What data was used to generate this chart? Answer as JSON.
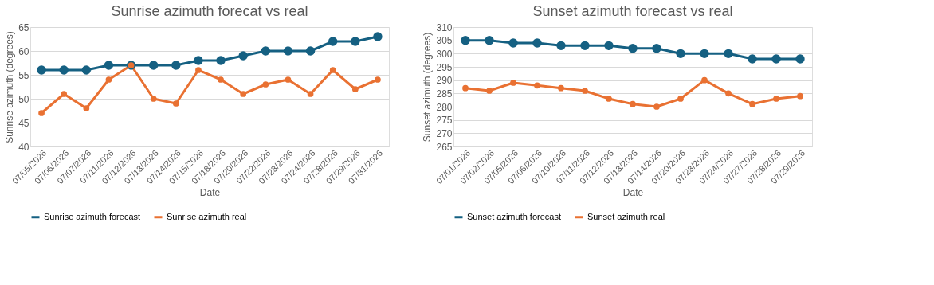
{
  "chart_data": [
    {
      "type": "line",
      "title": "Sunrise azimuth forecat vs real",
      "xlabel": "Date",
      "ylabel": "Sunrise azimuth (degrees)",
      "categories": [
        "07/05/2026",
        "07/06/2026",
        "07/07/2026",
        "07/11/2026",
        "07/12/2026",
        "07/13/2026",
        "07/14/2026",
        "07/15/2026",
        "07/18/2026",
        "07/20/2026",
        "07/22/2026",
        "07/23/2026",
        "07/24/2026",
        "07/28/2026",
        "07/29/2026",
        "07/31/2026"
      ],
      "series": [
        {
          "name": "Sunrise azimuth forecast",
          "color": "#156082",
          "values": [
            56,
            56,
            56,
            57,
            57,
            57,
            57,
            58,
            58,
            59,
            60,
            60,
            60,
            62,
            62,
            63
          ]
        },
        {
          "name": "Sunrise azimuth real",
          "color": "#e97132",
          "values": [
            47,
            51,
            48,
            54,
            57,
            50,
            49,
            56,
            54,
            51,
            53,
            54,
            51,
            56,
            52,
            54
          ]
        }
      ],
      "ylim": [
        40,
        65
      ],
      "yticks": [
        40,
        45,
        50,
        55,
        60,
        65
      ],
      "grid": "y",
      "legend": "bottom",
      "marker": "circle",
      "line_style": "solid"
    },
    {
      "type": "line",
      "title": "Sunset azimuth forecast vs real",
      "xlabel": "Date",
      "ylabel": "Sunset azimuth (degrees)",
      "categories": [
        "07/01/2026",
        "07/02/2026",
        "07/05/2026",
        "07/06/2026",
        "07/10/2026",
        "07/11/2026",
        "07/12/2026",
        "07/13/2026",
        "07/14/2026",
        "07/20/2026",
        "07/23/2026",
        "07/24/2026",
        "07/27/2026",
        "07/28/2026",
        "07/29/2026"
      ],
      "series": [
        {
          "name": "Sunset azimuth forecast",
          "color": "#156082",
          "values": [
            305,
            305,
            304,
            304,
            303,
            303,
            303,
            302,
            302,
            300,
            300,
            300,
            298,
            298,
            298
          ]
        },
        {
          "name": "Sunset azimuth real",
          "color": "#e97132",
          "values": [
            287,
            286,
            289,
            288,
            287,
            286,
            283,
            281,
            280,
            283,
            290,
            285,
            281,
            283,
            284
          ]
        }
      ],
      "ylim": [
        265,
        310
      ],
      "yticks": [
        265,
        270,
        275,
        280,
        285,
        290,
        295,
        300,
        305,
        310
      ],
      "grid": "y",
      "legend": "bottom",
      "marker": "circle",
      "line_style": "solid"
    }
  ]
}
